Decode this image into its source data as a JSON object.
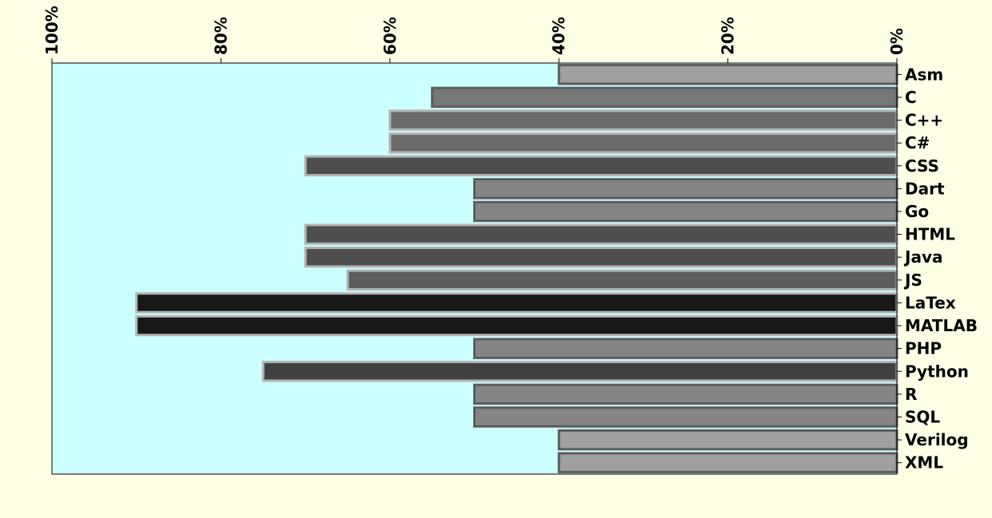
{
  "chart_data": {
    "type": "bar",
    "orientation": "horizontal",
    "x_axis_position": "top",
    "x_axis_inverted": true,
    "y_axis_position": "right",
    "xlim": [
      100,
      0
    ],
    "xticks": [
      100,
      80,
      60,
      40,
      20,
      0
    ],
    "xtick_labels": [
      "100%",
      "80%",
      "60%",
      "40%",
      "20%",
      "0%"
    ],
    "grid": false,
    "categories": [
      "Asm",
      "C",
      "C++",
      "C#",
      "CSS",
      "Dart",
      "Go",
      "HTML",
      "Java",
      "JS",
      "LaTex",
      "MATLAB",
      "PHP",
      "Python",
      "R",
      "SQL",
      "Verilog",
      "XML"
    ],
    "values": [
      40,
      55,
      60,
      60,
      70,
      50,
      50,
      70,
      70,
      65,
      90,
      90,
      50,
      75,
      50,
      50,
      40,
      40
    ],
    "title": "",
    "xlabel": "",
    "ylabel": ""
  },
  "colors": {
    "figure_background": "#ffffe6",
    "plot_background": "#ccffff"
  }
}
